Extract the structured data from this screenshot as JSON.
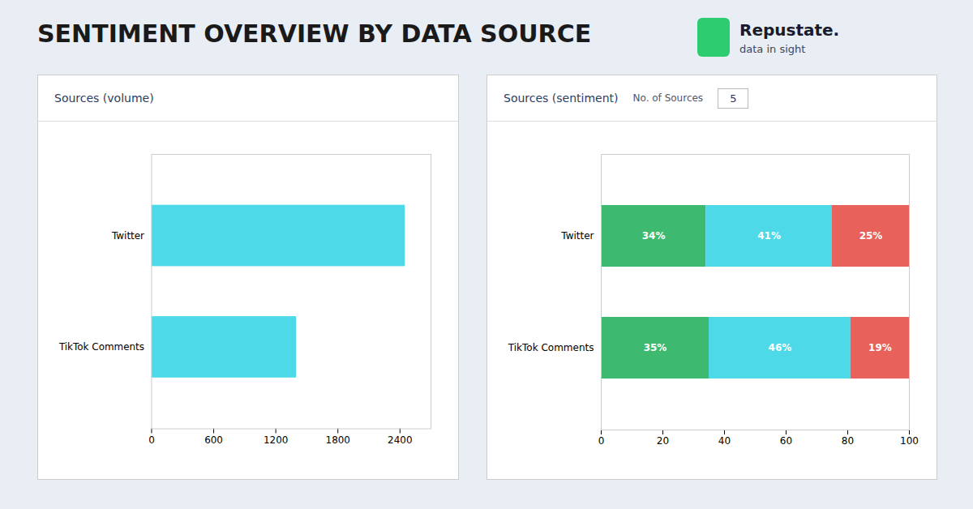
{
  "title": "SENTIMENT OVERVIEW BY DATA SOURCE",
  "annotations": [
    "Repustate.",
    "data in sight"
  ],
  "chart_data": [
    {
      "type": "bar",
      "title": "Sources (volume)",
      "orientation": "horizontal",
      "categories": [
        "TikTok Comments",
        "Twitter"
      ],
      "values": [
        1400,
        2450
      ],
      "color": "#4dd9e8",
      "xlim": [
        0,
        2700
      ],
      "xticks": [
        0,
        600,
        1200,
        1800,
        2400
      ]
    },
    {
      "type": "bar",
      "title": "Sources (sentiment)",
      "annotations": [
        "No. of Sources",
        "5"
      ],
      "orientation": "horizontal",
      "stacked": true,
      "data_labels": true,
      "categories": [
        "TikTok Comments",
        "Twitter"
      ],
      "series": [
        {
          "color": "#3dba6f",
          "values": [
            35,
            34
          ],
          "value_labels": [
            "35%",
            "34%"
          ]
        },
        {
          "color": "#4dd9e8",
          "values": [
            46,
            41
          ],
          "value_labels": [
            "46%",
            "41%"
          ]
        },
        {
          "color": "#e8615a",
          "values": [
            19,
            25
          ],
          "value_labels": [
            "19%",
            "25%"
          ]
        }
      ],
      "xlim": [
        0,
        100
      ],
      "xticks": [
        0,
        20,
        40,
        60,
        80,
        100
      ]
    }
  ]
}
